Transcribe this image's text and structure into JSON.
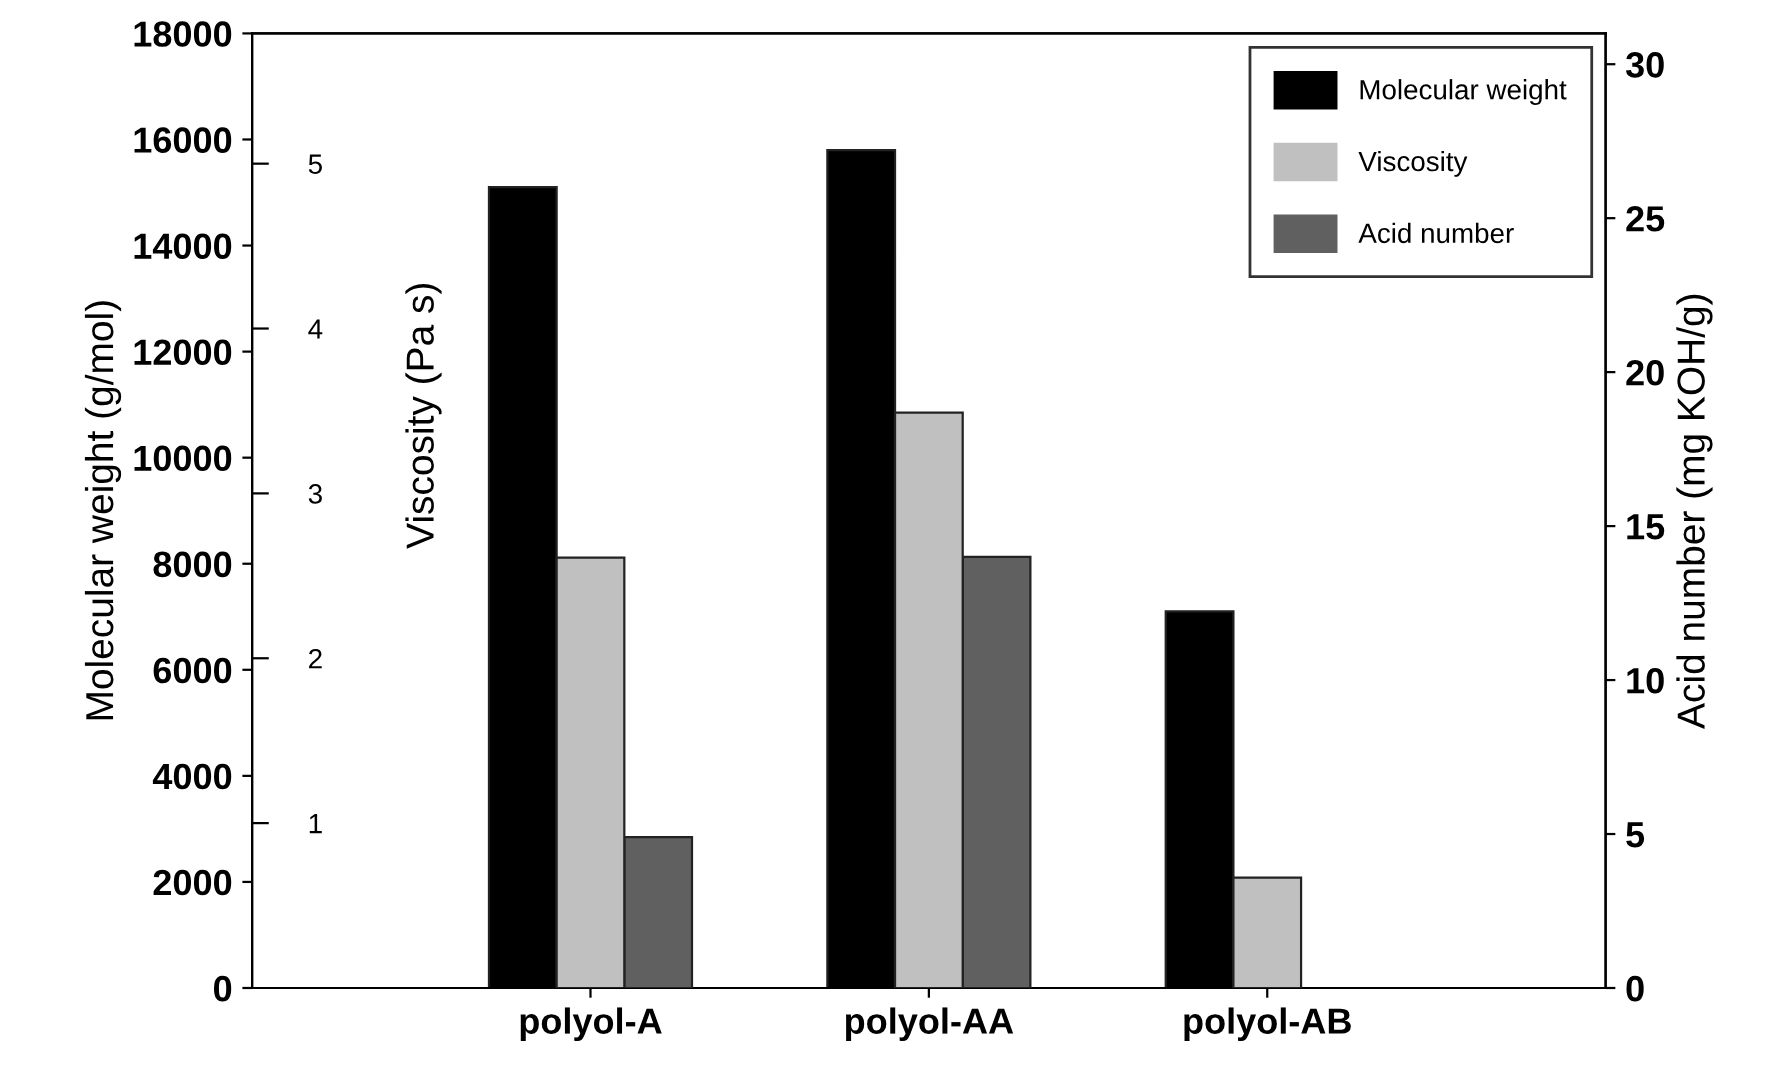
{
  "chart_data": {
    "type": "bar",
    "categories": [
      "polyol-A",
      "polyol-AA",
      "polyol-AB"
    ],
    "series": [
      {
        "name": "Molecular weight",
        "color": "#000000",
        "values": [
          15100,
          15800,
          7100
        ],
        "axis": "y"
      },
      {
        "name": "Viscosity",
        "color": "#c0c0c0",
        "values": [
          2.61,
          3.49,
          0.67
        ],
        "axis": "y3"
      },
      {
        "name": "Acid number",
        "color": "#606060",
        "values": [
          4.9,
          14.0,
          null
        ],
        "axis": "y2"
      }
    ],
    "ylabel": "Molecular weight (g/mol)",
    "y3label": "Viscosity (Pa s)",
    "y2label": "Acid number (mg KOH/g)",
    "ylim": [
      0,
      18000
    ],
    "yticks": [
      0,
      2000,
      4000,
      6000,
      8000,
      10000,
      12000,
      14000,
      16000,
      18000
    ],
    "y3lim": [
      0,
      5.79
    ],
    "y3ticks": [
      1,
      2,
      3,
      4,
      5
    ],
    "y2lim": [
      0,
      31
    ],
    "y2ticks": [
      0,
      5,
      10,
      15,
      20,
      25,
      30
    ],
    "legend": "top right",
    "grid": false
  }
}
